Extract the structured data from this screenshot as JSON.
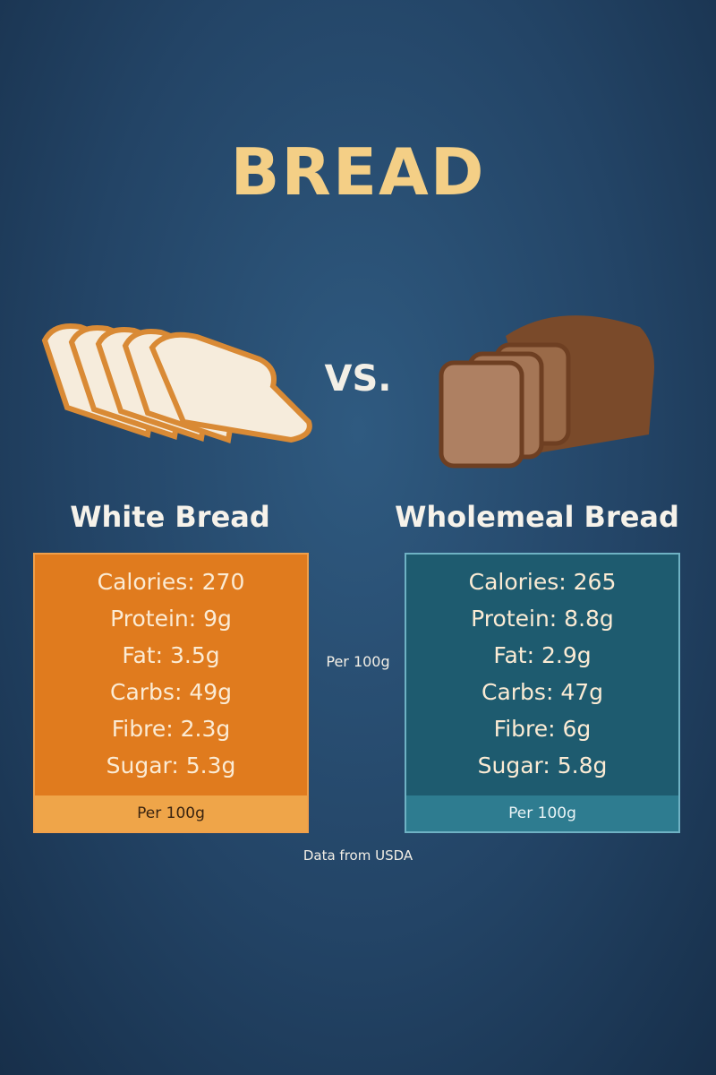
{
  "header": {
    "title": "BREAD",
    "versus": "VS."
  },
  "columns": [
    {
      "name": "White Bread",
      "rows": [
        "Calories: 270",
        "Protein: 9g",
        "Fat: 3.5g",
        "Carbs: 49g",
        "Fibre: 2.3g",
        "Sugar: 5.3g"
      ],
      "footer": "Per 100g"
    },
    {
      "name": "Wholemeal Bread",
      "rows": [
        "Calories: 265",
        "Protein: 8.8g",
        "Fat: 2.9g",
        "Carbs: 47g",
        "Fibre: 6g",
        "Sugar: 5.8g"
      ],
      "footer": "Per 100g"
    }
  ],
  "middle_note": "Per 100g",
  "source": "Data from USDA"
}
